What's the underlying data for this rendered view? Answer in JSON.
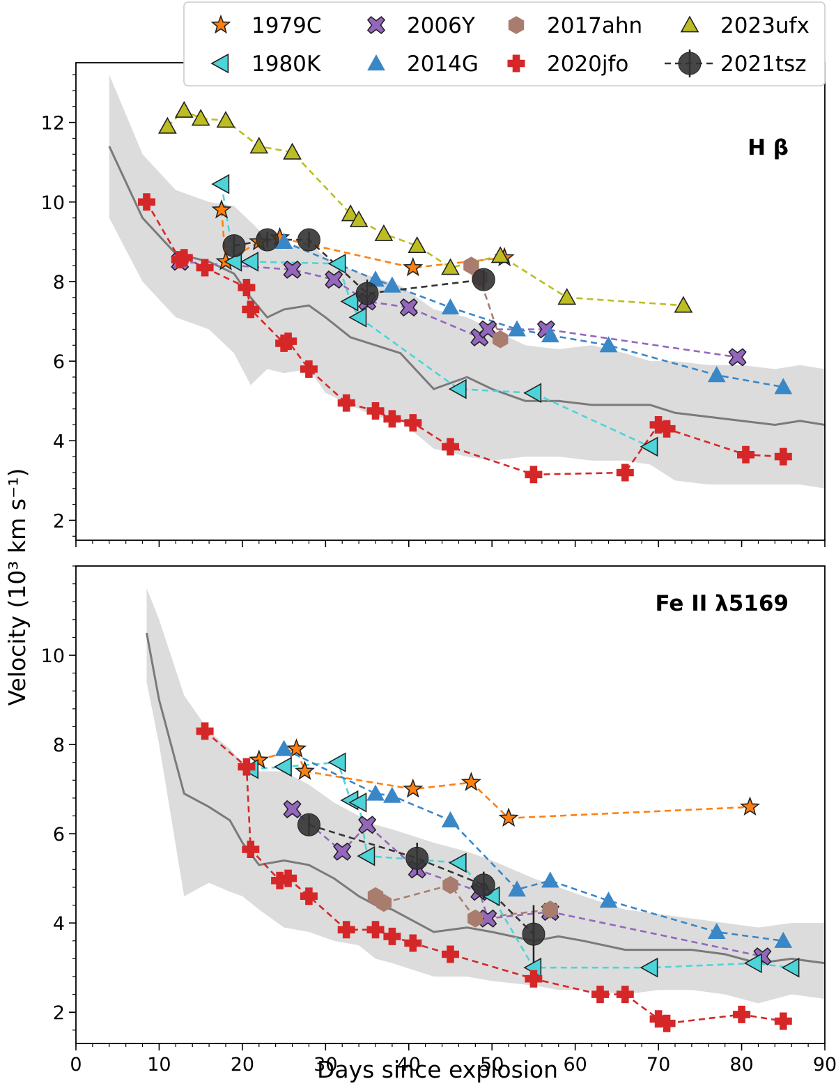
{
  "chart_data": {
    "type": "scatter",
    "xlabel": "Days since explosion",
    "ylabel": "Velocity (10³ km s⁻¹)",
    "xlim": [
      0,
      90
    ],
    "xticks": [
      0,
      10,
      20,
      30,
      40,
      50,
      60,
      70,
      80,
      90
    ],
    "legend": [
      {
        "name": "1979C",
        "marker": "star",
        "color": "#ff7f0e"
      },
      {
        "name": "2006Y",
        "marker": "x",
        "color": "#9467bd"
      },
      {
        "name": "2017ahn",
        "marker": "hexagon",
        "color": "#a97d6e"
      },
      {
        "name": "2023ufx",
        "marker": "triangle",
        "color": "#bcbd22"
      },
      {
        "name": "1980K",
        "marker": "triangle-left",
        "color": "#4dd4d9"
      },
      {
        "name": "2014G",
        "marker": "triangle",
        "color": "#3a87c7"
      },
      {
        "name": "2020jfo",
        "marker": "plus",
        "color": "#d62728"
      },
      {
        "name": "2021tsz",
        "marker": "circle",
        "color": "#333333"
      }
    ],
    "panels": [
      {
        "label": "H β",
        "ylim": [
          1.5,
          13.5
        ],
        "yticks": [
          2,
          4,
          6,
          8,
          10,
          12
        ],
        "band": {
          "x": [
            4,
            8,
            12,
            16,
            19,
            21,
            23,
            25,
            28,
            30,
            33,
            36,
            39,
            43,
            47,
            50,
            54,
            58,
            62,
            66,
            69,
            72,
            76,
            80,
            84,
            87,
            90
          ],
          "mean": [
            11.4,
            9.6,
            8.7,
            8.5,
            8.2,
            7.6,
            7.1,
            7.3,
            7.4,
            7.1,
            6.6,
            6.4,
            6.2,
            5.3,
            5.6,
            5.3,
            5.0,
            5.0,
            4.9,
            4.9,
            4.9,
            4.7,
            4.6,
            4.5,
            4.4,
            4.5,
            4.4
          ],
          "upper": [
            13.2,
            11.2,
            10.3,
            10.0,
            9.9,
            9.5,
            9.1,
            8.8,
            9.0,
            8.6,
            8.3,
            8.1,
            7.9,
            7.3,
            7.1,
            6.8,
            6.4,
            6.3,
            6.4,
            6.2,
            6.0,
            6.0,
            5.9,
            5.9,
            5.8,
            5.9,
            5.8
          ],
          "lower": [
            9.6,
            8.0,
            7.1,
            6.8,
            6.2,
            5.4,
            5.8,
            5.7,
            5.8,
            5.2,
            4.9,
            4.6,
            4.5,
            3.8,
            3.6,
            3.5,
            3.6,
            3.6,
            3.5,
            3.5,
            3.4,
            3.0,
            2.9,
            2.9,
            2.9,
            2.9,
            2.8
          ]
        },
        "series": [
          {
            "name": "1979C",
            "x": [
              17.5,
              18,
              22,
              24.5,
              40.5,
              51.5
            ],
            "y": [
              9.8,
              8.5,
              9.0,
              9.1,
              8.35,
              8.6
            ]
          },
          {
            "name": "2006Y",
            "x": [
              12.5,
              26,
              31,
              35,
              40,
              48.5,
              49.5,
              56.5,
              79.5
            ],
            "y": [
              8.5,
              8.3,
              8.05,
              7.5,
              7.35,
              6.6,
              6.8,
              6.8,
              6.1
            ]
          },
          {
            "name": "2017ahn",
            "x": [
              47.5,
              48.5,
              51
            ],
            "y": [
              8.4,
              8.1,
              6.55
            ]
          },
          {
            "name": "2023ufx",
            "x": [
              11,
              13,
              15,
              18,
              22,
              26,
              33,
              34,
              37,
              41,
              45,
              51,
              59,
              73
            ],
            "y": [
              11.9,
              12.3,
              12.1,
              12.05,
              11.4,
              11.25,
              9.7,
              9.55,
              9.2,
              8.9,
              8.35,
              8.65,
              7.6,
              7.4
            ]
          },
          {
            "name": "1980K",
            "x": [
              17.5,
              19,
              21,
              31.5,
              33,
              34,
              46,
              55,
              69
            ],
            "y": [
              10.45,
              8.5,
              8.5,
              8.45,
              7.5,
              7.1,
              5.3,
              5.2,
              3.85
            ]
          },
          {
            "name": "2014G",
            "x": [
              25,
              36,
              38,
              45,
              53,
              57,
              64,
              77,
              85
            ],
            "y": [
              9.0,
              8.05,
              7.9,
              7.35,
              6.8,
              6.65,
              6.4,
              5.65,
              5.35
            ]
          },
          {
            "name": "2020jfo",
            "x": [
              8.5,
              12.5,
              13,
              15.5,
              20.5,
              21,
              25,
              25.5,
              28,
              32.5,
              36,
              38,
              40.5,
              45,
              55,
              66,
              70,
              71,
              80.5,
              85
            ],
            "y": [
              10.0,
              8.55,
              8.6,
              8.35,
              7.85,
              7.3,
              6.45,
              6.5,
              5.8,
              4.95,
              4.75,
              4.55,
              4.45,
              3.85,
              3.15,
              3.2,
              4.4,
              4.3,
              3.65,
              3.6
            ]
          },
          {
            "name": "2021tsz",
            "x": [
              19,
              23,
              28,
              35,
              49
            ],
            "y": [
              8.9,
              9.05,
              9.05,
              7.7,
              8.05
            ],
            "err": [
              0.25,
              0.2,
              0.2,
              0.35,
              0.25
            ]
          }
        ]
      },
      {
        "label": "Fe II λ5169",
        "ylim": [
          1.3,
          12
        ],
        "yticks": [
          2,
          4,
          6,
          8,
          10
        ],
        "band": {
          "x": [
            8.5,
            10,
            13,
            16,
            18.5,
            20,
            22,
            25,
            28,
            31,
            34,
            36,
            38,
            43,
            47,
            50,
            55,
            58,
            61,
            66,
            70,
            74,
            78,
            82,
            86,
            90
          ],
          "mean": [
            10.5,
            9.0,
            6.9,
            6.6,
            6.3,
            5.8,
            5.3,
            5.4,
            5.3,
            5.0,
            4.6,
            4.4,
            4.3,
            3.8,
            3.9,
            3.8,
            3.6,
            3.7,
            3.6,
            3.4,
            3.4,
            3.4,
            3.3,
            3.1,
            3.2,
            3.1
          ],
          "upper": [
            11.5,
            10.8,
            9.1,
            8.3,
            7.9,
            7.6,
            7.4,
            7.4,
            7.1,
            6.7,
            6.4,
            6.2,
            6.1,
            5.8,
            5.6,
            5.4,
            5.0,
            4.8,
            4.6,
            4.3,
            4.2,
            4.1,
            4.0,
            3.9,
            4.0,
            4.0
          ],
          "lower": [
            9.4,
            8.0,
            4.6,
            4.9,
            4.7,
            4.6,
            4.3,
            3.9,
            3.8,
            3.6,
            3.5,
            3.2,
            3.1,
            2.8,
            2.8,
            2.7,
            2.6,
            2.5,
            2.5,
            2.4,
            2.5,
            2.5,
            2.4,
            2.2,
            2.4,
            2.3
          ]
        },
        "series": [
          {
            "name": "1979C",
            "x": [
              22,
              26.5,
              27.5,
              40.5,
              47.5,
              52,
              81
            ],
            "y": [
              7.65,
              7.9,
              7.4,
              7.0,
              7.15,
              6.35,
              6.6
            ]
          },
          {
            "name": "2006Y",
            "x": [
              26,
              32,
              35,
              41,
              48.5,
              49.5,
              57,
              82.5
            ],
            "y": [
              6.55,
              5.6,
              6.2,
              5.2,
              4.7,
              4.1,
              4.25,
              3.25
            ]
          },
          {
            "name": "2017ahn",
            "x": [
              36,
              37,
              45,
              48,
              57
            ],
            "y": [
              4.6,
              4.45,
              4.85,
              4.1,
              4.3
            ]
          },
          {
            "name": "1980K",
            "x": [
              21,
              25,
              31.5,
              33,
              34,
              35,
              46,
              50,
              55,
              69,
              81.5,
              86
            ],
            "y": [
              7.45,
              7.5,
              7.6,
              6.75,
              6.7,
              5.5,
              5.35,
              4.6,
              3.0,
              3.0,
              3.1,
              3.0
            ]
          },
          {
            "name": "2014G",
            "x": [
              25,
              36,
              38,
              45,
              53,
              57,
              64,
              77,
              85
            ],
            "y": [
              7.9,
              6.9,
              6.85,
              6.3,
              4.75,
              4.95,
              4.5,
              3.8,
              3.6
            ]
          },
          {
            "name": "2020jfo",
            "x": [
              15.5,
              20.5,
              21,
              24.5,
              25.5,
              28,
              32.5,
              36,
              38,
              40.5,
              45,
              55,
              63,
              66,
              70,
              71,
              80,
              85
            ],
            "y": [
              8.3,
              7.5,
              5.65,
              4.95,
              5.0,
              4.6,
              3.85,
              3.85,
              3.7,
              3.55,
              3.3,
              2.75,
              2.4,
              2.4,
              1.85,
              1.75,
              1.95,
              1.8
            ]
          },
          {
            "name": "2021tsz",
            "x": [
              28,
              41,
              49,
              55
            ],
            "y": [
              6.2,
              5.45,
              4.85,
              3.75
            ],
            "err": [
              0.25,
              0.35,
              0.3,
              0.65
            ]
          }
        ]
      }
    ]
  }
}
